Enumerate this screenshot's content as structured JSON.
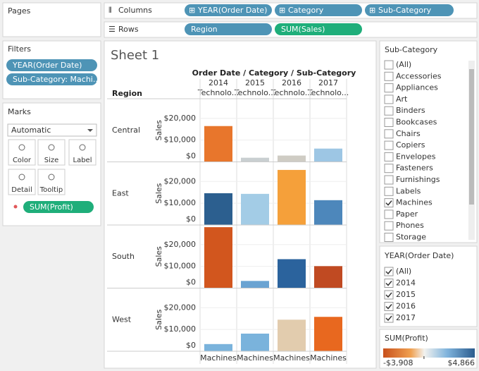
{
  "pages": {
    "title": "Pages"
  },
  "filters": {
    "title": "Filters",
    "pills": [
      "YEAR(Order Date)",
      "Sub-Category: Machi.."
    ]
  },
  "marks": {
    "title": "Marks",
    "mark_type": "Automatic",
    "buttons": [
      "Color",
      "Size",
      "Label",
      "Detail",
      "Tooltip"
    ],
    "pill": "SUM(Profit)"
  },
  "shelves": {
    "columns": {
      "label": "Columns",
      "pills": [
        "YEAR(Order Date)",
        "Category",
        "Sub-Category"
      ]
    },
    "rows": {
      "label": "Rows",
      "pills": [
        "Region",
        "SUM(Sales)"
      ]
    }
  },
  "chart_data": {
    "type": "bar",
    "title": "Sheet 1",
    "column_header": "Order Date / Category / Sub-Category",
    "row_header": "Region",
    "y_label": "Sales",
    "categories": [
      "2014",
      "2015",
      "2016",
      "2017"
    ],
    "category": "Technolo...",
    "subcategory": "Machines",
    "series": [
      {
        "name": "Central",
        "values": [
          16450,
          1900,
          2900,
          6100
        ],
        "colors": [
          "#e8762c",
          "#c9cfd1",
          "#cfccc4",
          "#9dc6e4"
        ]
      },
      {
        "name": "East",
        "values": [
          14600,
          14300,
          25300,
          11400
        ],
        "colors": [
          "#2c5f8f",
          "#a3cce6",
          "#f5a03a",
          "#4d87bb"
        ]
      },
      {
        "name": "South",
        "values": [
          28000,
          3300,
          13300,
          10100
        ],
        "colors": [
          "#d2561e",
          "#6aa3d2",
          "#2b639d",
          "#c04a22"
        ]
      },
      {
        "name": "West",
        "values": [
          3300,
          8100,
          14500,
          15800
        ],
        "colors": [
          "#7ab3dc",
          "#7ab3dc",
          "#e2ccae",
          "#e8681f"
        ]
      }
    ],
    "ylim": [
      0,
      29000
    ],
    "yticks": [
      {
        "value": 0,
        "label": "$0"
      },
      {
        "value": 10000,
        "label": "$10,000"
      },
      {
        "value": 20000,
        "label": "$20,000"
      }
    ],
    "grid": true
  },
  "subcategory_filter": {
    "title": "Sub-Category",
    "items": [
      {
        "label": "(All)",
        "checked": false
      },
      {
        "label": "Accessories",
        "checked": false
      },
      {
        "label": "Appliances",
        "checked": false
      },
      {
        "label": "Art",
        "checked": false
      },
      {
        "label": "Binders",
        "checked": false
      },
      {
        "label": "Bookcases",
        "checked": false
      },
      {
        "label": "Chairs",
        "checked": false
      },
      {
        "label": "Copiers",
        "checked": false
      },
      {
        "label": "Envelopes",
        "checked": false
      },
      {
        "label": "Fasteners",
        "checked": false
      },
      {
        "label": "Furnishings",
        "checked": false
      },
      {
        "label": "Labels",
        "checked": false
      },
      {
        "label": "Machines",
        "checked": true
      },
      {
        "label": "Paper",
        "checked": false
      },
      {
        "label": "Phones",
        "checked": false
      },
      {
        "label": "Storage",
        "checked": false
      }
    ]
  },
  "year_filter": {
    "title": "YEAR(Order Date)",
    "items": [
      {
        "label": "(All)",
        "checked": true
      },
      {
        "label": "2014",
        "checked": true
      },
      {
        "label": "2015",
        "checked": true
      },
      {
        "label": "2016",
        "checked": true
      },
      {
        "label": "2017",
        "checked": true
      }
    ]
  },
  "profit_legend": {
    "title": "SUM(Profit)",
    "min": {
      "value": -3908,
      "label": "-$3,908"
    },
    "max": {
      "value": 4866,
      "label": "$4,866"
    }
  }
}
